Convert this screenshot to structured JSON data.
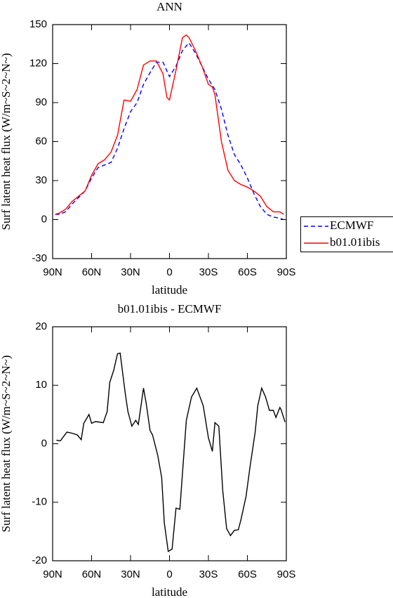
{
  "chart_data": [
    {
      "type": "line",
      "title": "ANN",
      "xlabel": "latitude",
      "ylabel": "Surf latent heat flux (W/m~S~2~N~)",
      "xlim": [
        90,
        -90
      ],
      "xticks": [
        {
          "value": 90,
          "label": "90N"
        },
        {
          "value": 60,
          "label": "60N"
        },
        {
          "value": 30,
          "label": "30N"
        },
        0,
        {
          "value": -30,
          "label": "30S"
        },
        {
          "value": -60,
          "label": "60S"
        },
        {
          "value": -90,
          "label": "90S"
        }
      ],
      "ylim": [
        -30,
        150
      ],
      "yticks": [
        -30,
        0,
        30,
        60,
        90,
        120,
        150
      ],
      "legend": "outside-right",
      "series": [
        {
          "name": "ECMWF",
          "color": "#0000ff",
          "dash": true,
          "x": [
            88,
            85,
            80,
            75,
            70,
            65,
            60,
            55,
            50,
            45,
            40,
            35,
            30,
            25,
            20,
            15,
            10,
            5,
            0,
            -5,
            -10,
            -15,
            -20,
            -25,
            -30,
            -35,
            -40,
            -45,
            -50,
            -55,
            -60,
            -65,
            -70,
            -75,
            -80,
            -85,
            -88
          ],
          "values": [
            4,
            4,
            6,
            12,
            17,
            22,
            32,
            40,
            42,
            44,
            55,
            70,
            83,
            90,
            104,
            113,
            121,
            121,
            110,
            118,
            130,
            136,
            128,
            118,
            108,
            100,
            85,
            65,
            50,
            42,
            32,
            20,
            10,
            4,
            2,
            1,
            0
          ]
        },
        {
          "name": "b01.01ibis",
          "color": "#ff0000",
          "dash": false,
          "x": [
            88,
            85,
            80,
            75,
            70,
            65,
            60,
            55,
            50,
            45,
            40,
            35,
            30,
            25,
            20,
            15,
            10,
            5,
            2,
            0,
            -5,
            -10,
            -13,
            -15,
            -20,
            -25,
            -30,
            -33,
            -35,
            -40,
            -45,
            -50,
            -55,
            -60,
            -65,
            -70,
            -75,
            -80,
            -85,
            -88
          ],
          "values": [
            4,
            5,
            8,
            14,
            18,
            22,
            34,
            43,
            46,
            52,
            65,
            92,
            91,
            100,
            119,
            122,
            122,
            112,
            94,
            92,
            115,
            140,
            142,
            140,
            130,
            118,
            104,
            102,
            96,
            60,
            38,
            30,
            27,
            25,
            22,
            18,
            10,
            6,
            6,
            4
          ]
        }
      ]
    },
    {
      "type": "line",
      "title": "b01.01ibis - ECMWF",
      "xlabel": "latitude",
      "ylabel": "Surf latent heat flux (W/m~S~2~N~)",
      "xlim": [
        90,
        -90
      ],
      "xticks": [
        {
          "value": 90,
          "label": "90N"
        },
        {
          "value": 60,
          "label": "60N"
        },
        {
          "value": 30,
          "label": "30N"
        },
        0,
        {
          "value": -30,
          "label": "30S"
        },
        {
          "value": -60,
          "label": "60S"
        },
        {
          "value": -90,
          "label": "90S"
        }
      ],
      "ylim": [
        -20,
        20
      ],
      "yticks": [
        -20,
        -10,
        0,
        10,
        20
      ],
      "series": [
        {
          "color": "#000000",
          "dash": false,
          "x": [
            87,
            84,
            79,
            75,
            71,
            68,
            66,
            62,
            60,
            57,
            51,
            48,
            46,
            43,
            40,
            38,
            34,
            32,
            29,
            26,
            24,
            20,
            18,
            15,
            13,
            9,
            6,
            4,
            1,
            -2,
            -5,
            -8,
            -13,
            -17,
            -21,
            -26,
            -30,
            -33,
            -35,
            -38,
            -41,
            -44,
            -47,
            -50,
            -53,
            -55,
            -59,
            -62,
            -66,
            -68,
            -71,
            -74,
            -77,
            -80,
            -82,
            -85,
            -86,
            -89
          ],
          "values": [
            0.6,
            0.5,
            2,
            1.8,
            1.5,
            0.7,
            3.5,
            5,
            3.5,
            3.8,
            3.6,
            5.5,
            10.5,
            12.5,
            15.4,
            15.5,
            8.5,
            5.5,
            3,
            4,
            3.3,
            9.5,
            7,
            2.3,
            1.5,
            -2,
            -5.8,
            -13.5,
            -18.4,
            -18,
            -11,
            -11.2,
            4,
            8,
            9.5,
            6.5,
            1,
            -1.3,
            3.6,
            3,
            -8,
            -14.5,
            -15.7,
            -14.8,
            -14.7,
            -13,
            -9,
            -4,
            2,
            6.5,
            9.5,
            8,
            5.7,
            5.7,
            4.5,
            6.2,
            5.8,
            3.7
          ]
        }
      ]
    }
  ]
}
